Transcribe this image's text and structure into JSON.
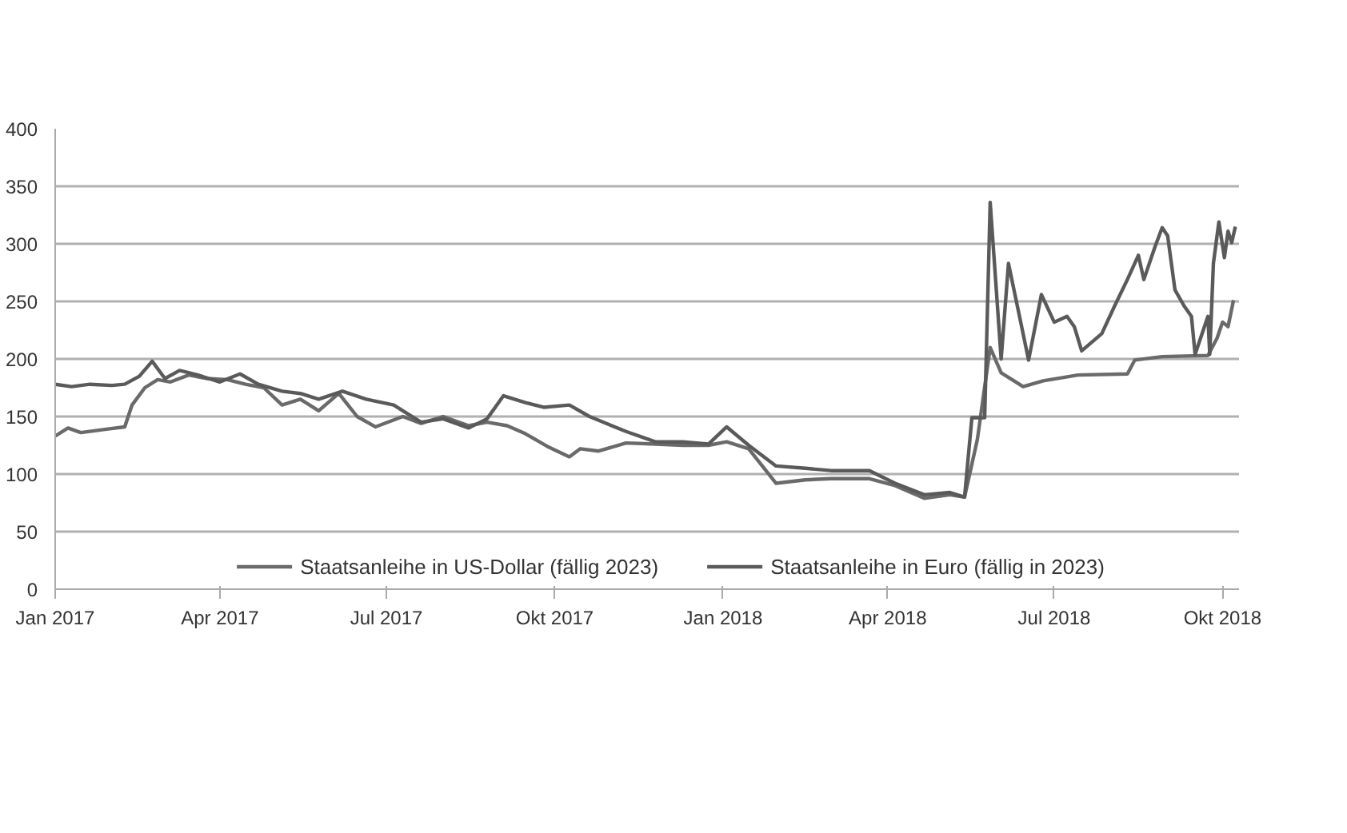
{
  "chart_data": {
    "type": "line",
    "xlim": [
      "2017-01-01",
      "2018-10-10"
    ],
    "ylim": [
      0,
      400
    ],
    "yticks": [
      0,
      50,
      100,
      150,
      200,
      250,
      300,
      350,
      400
    ],
    "xticks": [
      {
        "value": "2017-01-01",
        "label": "Jan 2017"
      },
      {
        "value": "2017-04-01",
        "label": "Apr 2017"
      },
      {
        "value": "2017-07-01",
        "label": "Jul 2017"
      },
      {
        "value": "2017-10-01",
        "label": "Okt 2017"
      },
      {
        "value": "2018-01-01",
        "label": "Jan 2018"
      },
      {
        "value": "2018-04-01",
        "label": "Apr 2018"
      },
      {
        "value": "2018-07-01",
        "label": "Jul 2018"
      },
      {
        "value": "2018-10-01",
        "label": "Okt 2018"
      }
    ],
    "grid": "y",
    "legend": "bottom",
    "marker": "none",
    "line_style": "solid",
    "series": [
      {
        "name": "Staatsanleihe in US-Dollar (fällig 2023)",
        "color": "#6a6a6a",
        "x": [
          "2017-01-01",
          "2017-01-08",
          "2017-01-15",
          "2017-01-29",
          "2017-02-08",
          "2017-02-12",
          "2017-02-19",
          "2017-02-26",
          "2017-03-05",
          "2017-03-15",
          "2017-03-25",
          "2017-04-05",
          "2017-04-15",
          "2017-04-25",
          "2017-05-05",
          "2017-05-15",
          "2017-05-25",
          "2017-06-05",
          "2017-06-15",
          "2017-06-25",
          "2017-07-10",
          "2017-07-20",
          "2017-08-01",
          "2017-08-15",
          "2017-08-25",
          "2017-09-05",
          "2017-09-15",
          "2017-09-27",
          "2017-10-09",
          "2017-10-15",
          "2017-10-25",
          "2017-11-09",
          "2017-11-25",
          "2017-12-10",
          "2017-12-24",
          "2018-01-03",
          "2018-01-15",
          "2018-01-30",
          "2018-02-15",
          "2018-03-01",
          "2018-03-22",
          "2018-04-05",
          "2018-04-21",
          "2018-05-05",
          "2018-05-13",
          "2018-05-20",
          "2018-05-27",
          "2018-06-02",
          "2018-06-14",
          "2018-06-25",
          "2018-07-14",
          "2018-08-10",
          "2018-08-14",
          "2018-08-29",
          "2018-09-23",
          "2018-09-28",
          "2018-10-01",
          "2018-10-04",
          "2018-10-07"
        ],
        "values": [
          133,
          140,
          136,
          139,
          141,
          160,
          175,
          182,
          180,
          186,
          183,
          182,
          178,
          175,
          160,
          165,
          155,
          170,
          150,
          141,
          150,
          144,
          150,
          142,
          145,
          142,
          135,
          124,
          115,
          122,
          120,
          127,
          126,
          125,
          125,
          128,
          122,
          92,
          95,
          96,
          96,
          90,
          79,
          82,
          80,
          130,
          210,
          188,
          176,
          181,
          186,
          187,
          199,
          202,
          203,
          218,
          232,
          228,
          251
        ]
      },
      {
        "name": "Staatsanleihe in Euro (fällig in 2023)",
        "color": "#5a5a5a",
        "x": [
          "2017-01-01",
          "2017-01-10",
          "2017-01-20",
          "2017-02-01",
          "2017-02-08",
          "2017-02-16",
          "2017-02-23",
          "2017-03-02",
          "2017-03-10",
          "2017-03-20",
          "2017-04-01",
          "2017-04-12",
          "2017-04-22",
          "2017-05-05",
          "2017-05-15",
          "2017-05-25",
          "2017-06-07",
          "2017-06-20",
          "2017-07-05",
          "2017-07-20",
          "2017-08-01",
          "2017-08-15",
          "2017-08-25",
          "2017-09-03",
          "2017-09-15",
          "2017-09-25",
          "2017-10-09",
          "2017-10-20",
          "2017-11-09",
          "2017-11-25",
          "2017-12-10",
          "2017-12-24",
          "2018-01-03",
          "2018-01-15",
          "2018-01-30",
          "2018-02-15",
          "2018-03-01",
          "2018-03-22",
          "2018-04-05",
          "2018-04-21",
          "2018-05-05",
          "2018-05-13",
          "2018-05-17",
          "2018-05-24",
          "2018-05-27",
          "2018-06-02",
          "2018-06-06",
          "2018-06-17",
          "2018-06-24",
          "2018-07-01",
          "2018-07-08",
          "2018-07-12",
          "2018-07-16",
          "2018-07-27",
          "2018-08-03",
          "2018-08-10",
          "2018-08-16",
          "2018-08-19",
          "2018-08-25",
          "2018-08-29",
          "2018-09-01",
          "2018-09-05",
          "2018-09-10",
          "2018-09-14",
          "2018-09-16",
          "2018-09-23",
          "2018-09-24",
          "2018-09-26",
          "2018-09-29",
          "2018-10-02",
          "2018-10-04",
          "2018-10-06",
          "2018-10-08"
        ],
        "values": [
          178,
          176,
          178,
          177,
          178,
          185,
          198,
          183,
          190,
          186,
          180,
          187,
          178,
          172,
          170,
          165,
          172,
          165,
          160,
          145,
          148,
          140,
          148,
          168,
          162,
          158,
          160,
          150,
          137,
          128,
          128,
          126,
          141,
          125,
          107,
          105,
          103,
          103,
          92,
          82,
          84,
          80,
          149,
          149,
          336,
          200,
          283,
          199,
          256,
          232,
          237,
          228,
          207,
          222,
          246,
          269,
          290,
          269,
          297,
          314,
          307,
          260,
          246,
          237,
          204,
          237,
          204,
          283,
          319,
          288,
          311,
          301,
          315
        ]
      }
    ]
  }
}
